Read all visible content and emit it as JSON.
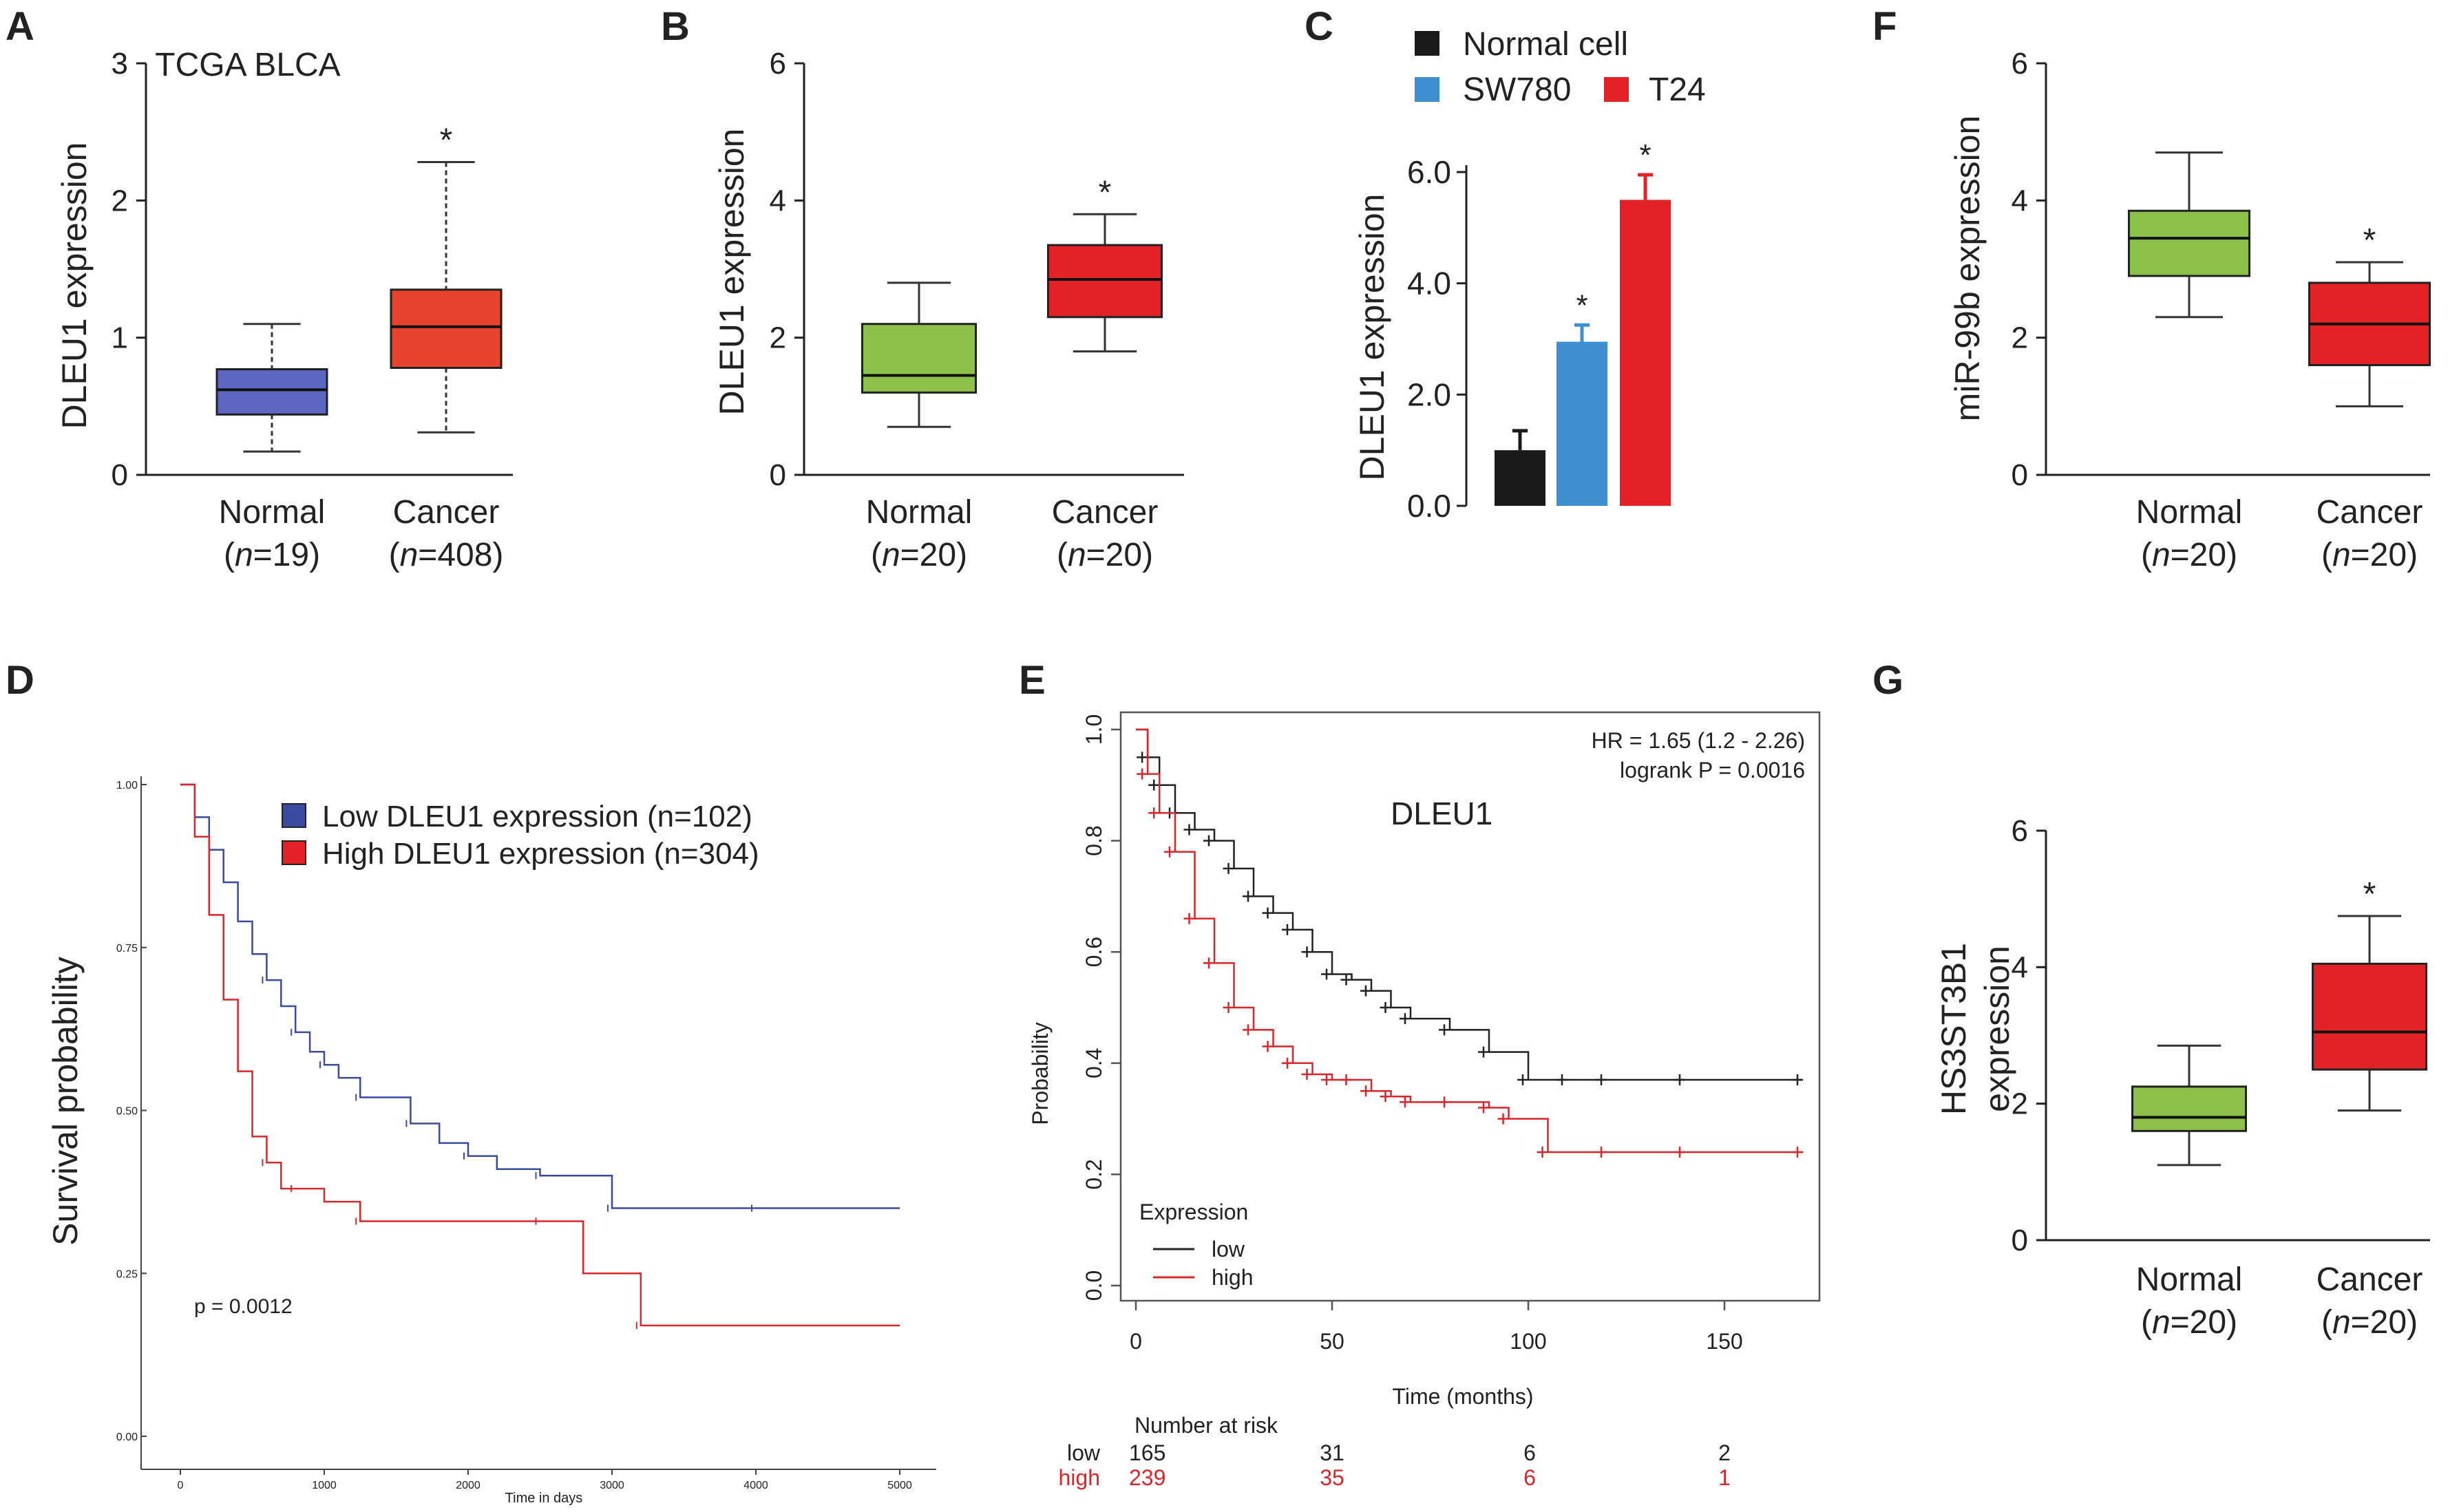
{
  "colors": {
    "blue": "#5b67c0",
    "red_tcga": "#e8432d",
    "green": "#8cc04a",
    "red": "#e32228",
    "sw780": "#3e8fd0",
    "dark": "#1a1a1a",
    "km_low": "#3a4aa0",
    "km_red": "#d9262b"
  },
  "chart_data": [
    {
      "panel": "A",
      "type": "box",
      "title": "TCGA BLCA",
      "ylabel": "DLEU1 expression",
      "ylim": [
        0,
        3
      ],
      "yticks": [
        "0",
        "1",
        "2",
        "3"
      ],
      "categories": [
        "Normal",
        "Cancer"
      ],
      "sub": [
        "(n=19)",
        "(n=408)"
      ],
      "boxes": [
        {
          "min": 0.17,
          "q1": 0.44,
          "med": 0.62,
          "q3": 0.77,
          "max": 1.1
        },
        {
          "min": 0.31,
          "q1": 0.78,
          "med": 1.08,
          "q3": 1.35,
          "max": 2.28
        }
      ],
      "sig": [
        "",
        "*"
      ]
    },
    {
      "panel": "B",
      "type": "box",
      "title": "",
      "ylabel": "DLEU1 expression",
      "ylim": [
        0,
        6
      ],
      "yticks": [
        "0",
        "2",
        "4",
        "6"
      ],
      "categories": [
        "Normal",
        "Cancer"
      ],
      "sub": [
        "(n=20)",
        "(n=20)"
      ],
      "boxes": [
        {
          "min": 0.7,
          "q1": 1.2,
          "med": 1.45,
          "q3": 2.2,
          "max": 2.8
        },
        {
          "min": 1.8,
          "q1": 2.3,
          "med": 2.85,
          "q3": 3.35,
          "max": 3.8
        }
      ],
      "sig": [
        "",
        "*"
      ]
    },
    {
      "panel": "C",
      "type": "bar",
      "ylabel": "DLEU1 expression",
      "ylim": [
        0,
        6
      ],
      "yticks": [
        "0.0",
        "2.0",
        "4.0",
        "6.0"
      ],
      "legend": [
        "Normal cell",
        "SW780",
        "T24"
      ],
      "values": [
        1.0,
        2.95,
        5.5
      ],
      "errors": [
        0.35,
        0.3,
        0.45
      ],
      "sig": [
        "",
        "*",
        "*"
      ]
    },
    {
      "panel": "F",
      "type": "box",
      "title": "",
      "ylabel": "miR-99b expression",
      "ylim": [
        0,
        6
      ],
      "yticks": [
        "0",
        "2",
        "4",
        "6"
      ],
      "categories": [
        "Normal",
        "Cancer"
      ],
      "sub": [
        "(n=20)",
        "(n=20)"
      ],
      "boxes": [
        {
          "min": 2.3,
          "q1": 2.9,
          "med": 3.45,
          "q3": 3.85,
          "max": 4.7
        },
        {
          "min": 1.0,
          "q1": 1.6,
          "med": 2.2,
          "q3": 2.8,
          "max": 3.1
        }
      ],
      "sig": [
        "",
        "*"
      ]
    },
    {
      "panel": "D",
      "type": "line",
      "ylabel": "Survival probability",
      "xlabel": "Time in days",
      "xticks": [
        "0",
        "1000",
        "2000",
        "3000",
        "4000",
        "5000"
      ],
      "yticks": [
        "0.00",
        "0.25",
        "0.50",
        "0.75",
        "1.00"
      ],
      "xlim": [
        0,
        5200
      ],
      "ylim": [
        0,
        1
      ],
      "legend": [
        "Low DLEU1 expression (n=102)",
        "High DLEU1 expression (n=304)"
      ],
      "pvalue": "p = 0.0012",
      "series": [
        {
          "name": "Low",
          "x": [
            0,
            100,
            200,
            300,
            400,
            500,
            600,
            700,
            800,
            900,
            1000,
            1100,
            1250,
            1400,
            1600,
            1800,
            2000,
            2200,
            2500,
            2800,
            3000,
            3500,
            4000,
            5000
          ],
          "y": [
            1.0,
            0.95,
            0.9,
            0.85,
            0.79,
            0.74,
            0.7,
            0.66,
            0.62,
            0.59,
            0.57,
            0.55,
            0.52,
            0.52,
            0.48,
            0.45,
            0.43,
            0.41,
            0.4,
            0.4,
            0.35,
            0.35,
            0.35,
            0.35
          ]
        },
        {
          "name": "High",
          "x": [
            0,
            100,
            200,
            300,
            400,
            500,
            600,
            700,
            800,
            1000,
            1250,
            1500,
            2500,
            2800,
            3200,
            5000
          ],
          "y": [
            1.0,
            0.92,
            0.8,
            0.67,
            0.56,
            0.46,
            0.42,
            0.38,
            0.38,
            0.36,
            0.33,
            0.33,
            0.33,
            0.25,
            0.17,
            0.17
          ]
        }
      ]
    },
    {
      "panel": "E",
      "type": "line",
      "title": "DLEU1",
      "ylabel": "Probability",
      "xlabel": "Time (months)",
      "xticks": [
        "0",
        "50",
        "100",
        "150"
      ],
      "yticks": [
        "0.0",
        "0.2",
        "0.4",
        "0.6",
        "0.8",
        "1.0"
      ],
      "xlim": [
        0,
        175
      ],
      "ylim": [
        0,
        1
      ],
      "hr": "HR = 1.65 (1.2 - 2.26)",
      "logrank": "logrank P = 0.0016",
      "legend_title": "Expression",
      "legend": [
        "low",
        "high"
      ],
      "series": [
        {
          "name": "low",
          "x": [
            0,
            3,
            6,
            10,
            15,
            20,
            25,
            30,
            35,
            40,
            45,
            50,
            55,
            60,
            65,
            70,
            80,
            90,
            100,
            110,
            120,
            140,
            170
          ],
          "y": [
            1.0,
            0.95,
            0.9,
            0.85,
            0.82,
            0.8,
            0.75,
            0.7,
            0.67,
            0.64,
            0.6,
            0.56,
            0.55,
            0.53,
            0.5,
            0.48,
            0.46,
            0.42,
            0.37,
            0.37,
            0.37,
            0.37,
            0.37
          ]
        },
        {
          "name": "high",
          "x": [
            0,
            3,
            6,
            10,
            15,
            20,
            25,
            30,
            35,
            40,
            45,
            50,
            55,
            60,
            65,
            70,
            80,
            90,
            95,
            105,
            120,
            140,
            170
          ],
          "y": [
            1.0,
            0.92,
            0.85,
            0.78,
            0.66,
            0.58,
            0.5,
            0.46,
            0.43,
            0.4,
            0.38,
            0.37,
            0.37,
            0.35,
            0.34,
            0.33,
            0.33,
            0.32,
            0.3,
            0.24,
            0.24,
            0.24,
            0.24
          ]
        }
      ],
      "risk_label": "Number at risk",
      "risk": [
        {
          "name": "low",
          "values": [
            "165",
            "31",
            "6",
            "2"
          ]
        },
        {
          "name": "high",
          "values": [
            "239",
            "35",
            "6",
            "1"
          ]
        }
      ]
    },
    {
      "panel": "G",
      "type": "box",
      "title": "",
      "ylabel": "HS3ST3B1 expression",
      "ylabel_lines": [
        "HS3ST3B1",
        "expression"
      ],
      "ylim": [
        0,
        6
      ],
      "yticks": [
        "0",
        "2",
        "4",
        "6"
      ],
      "categories": [
        "Normal",
        "Cancer"
      ],
      "sub": [
        "(n=20)",
        "(n=20)"
      ],
      "boxes": [
        {
          "min": 1.1,
          "q1": 1.6,
          "med": 1.8,
          "q3": 2.25,
          "max": 2.85
        },
        {
          "min": 1.9,
          "q1": 2.5,
          "med": 3.05,
          "q3": 4.05,
          "max": 4.75
        }
      ],
      "sig": [
        "",
        "*"
      ]
    }
  ]
}
